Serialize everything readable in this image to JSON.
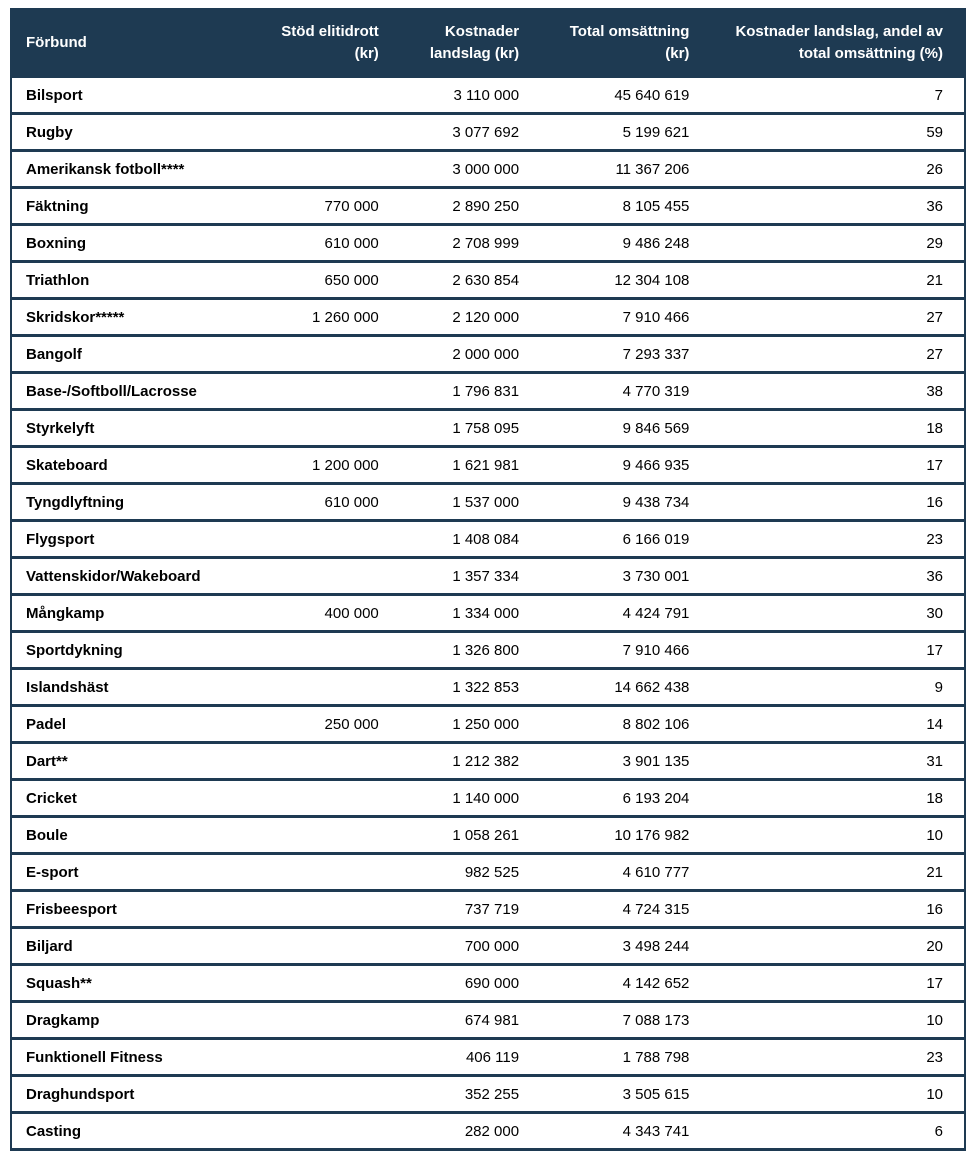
{
  "colors": {
    "header_bg": "#1e3a52",
    "header_text": "#ffffff",
    "row_bg": "#ffffff",
    "border": "#1e3a52",
    "body_text": "#000000"
  },
  "table": {
    "columns": [
      {
        "label": "Förbund",
        "align": "left"
      },
      {
        "label": "Stöd elitidrott\n(kr)",
        "align": "right"
      },
      {
        "label": "Kostnader\nlandslag (kr)",
        "align": "right"
      },
      {
        "label": "Total omsättning\n(kr)",
        "align": "right"
      },
      {
        "label": "Kostnader landslag, andel av\ntotal omsättning (%)",
        "align": "right"
      }
    ],
    "rows": [
      [
        "Bilsport",
        "",
        "3 110 000",
        "45 640 619",
        "7"
      ],
      [
        "Rugby",
        "",
        "3 077 692",
        "5 199 621",
        "59"
      ],
      [
        "Amerikansk fotboll****",
        "",
        "3 000 000",
        "11 367 206",
        "26"
      ],
      [
        "Fäktning",
        "770 000",
        "2 890 250",
        "8 105 455",
        "36"
      ],
      [
        "Boxning",
        "610 000",
        "2 708 999",
        "9 486 248",
        "29"
      ],
      [
        "Triathlon",
        "650 000",
        "2 630 854",
        "12 304 108",
        "21"
      ],
      [
        "Skridskor*****",
        "1 260 000",
        "2 120 000",
        "7 910 466",
        "27"
      ],
      [
        "Bangolf",
        "",
        "2 000 000",
        "7 293 337",
        "27"
      ],
      [
        "Base-/Softboll/Lacrosse",
        "",
        "1 796 831",
        "4 770 319",
        "38"
      ],
      [
        "Styrkelyft",
        "",
        "1 758 095",
        "9 846 569",
        "18"
      ],
      [
        "Skateboard",
        "1 200 000",
        "1 621 981",
        "9 466 935",
        "17"
      ],
      [
        "Tyngdlyftning",
        "610 000",
        "1 537 000",
        "9 438 734",
        "16"
      ],
      [
        "Flygsport",
        "",
        "1 408 084",
        "6 166 019",
        "23"
      ],
      [
        "Vattenskidor/Wakeboard",
        "",
        "1 357 334",
        "3 730 001",
        "36"
      ],
      [
        "Mångkamp",
        "400 000",
        "1 334 000",
        "4 424 791",
        "30"
      ],
      [
        "Sportdykning",
        "",
        "1 326 800",
        "7 910 466",
        "17"
      ],
      [
        "Islandshäst",
        "",
        "1 322 853",
        "14 662 438",
        "9"
      ],
      [
        "Padel",
        "250 000",
        "1 250 000",
        "8 802 106",
        "14"
      ],
      [
        "Dart**",
        "",
        "1 212 382",
        "3 901 135",
        "31"
      ],
      [
        "Cricket",
        "",
        "1 140 000",
        "6 193 204",
        "18"
      ],
      [
        "Boule",
        "",
        "1 058 261",
        "10 176 982",
        "10"
      ],
      [
        "E-sport",
        "",
        "982 525",
        "4 610 777",
        "21"
      ],
      [
        "Frisbeesport",
        "",
        "737 719",
        "4 724 315",
        "16"
      ],
      [
        "Biljard",
        "",
        "700 000",
        "3 498 244",
        "20"
      ],
      [
        "Squash**",
        "",
        "690 000",
        "4 142 652",
        "17"
      ],
      [
        "Dragkamp",
        "",
        "674 981",
        "7 088 173",
        "10"
      ],
      [
        "Funktionell Fitness",
        "",
        "406 119",
        "1 788 798",
        "23"
      ],
      [
        "Draghundsport",
        "",
        "352 255",
        "3 505 615",
        "10"
      ],
      [
        "Casting",
        "",
        "282 000",
        "4 343 741",
        "6"
      ]
    ]
  }
}
